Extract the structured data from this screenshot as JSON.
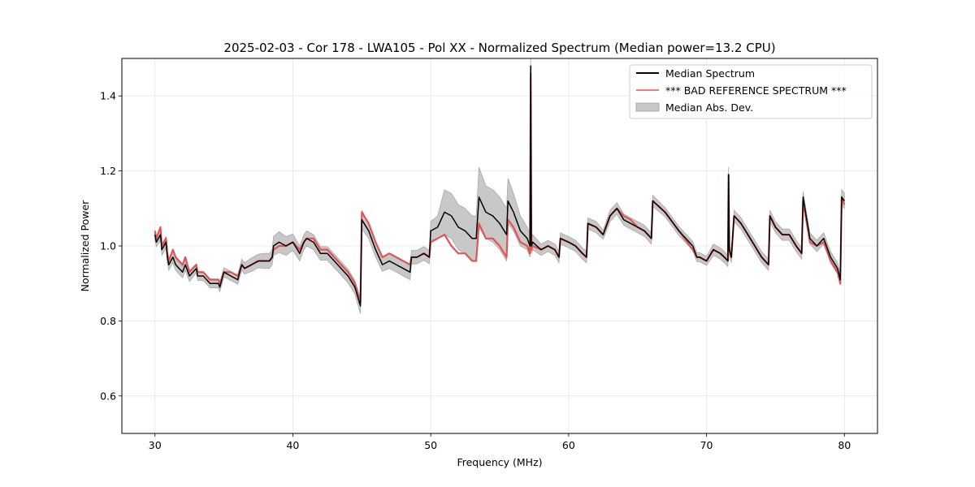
{
  "chart_data": {
    "type": "line",
    "title": "2025-02-03 - Cor 178 - LWA105 - Pol XX - Normalized Spectrum (Median power=13.2 CPU)",
    "xlabel": "Frequency (MHz)",
    "ylabel": "Normalized Power",
    "xlim": [
      27.6,
      82.4
    ],
    "ylim": [
      0.5,
      1.5
    ],
    "xticks": [
      30,
      40,
      50,
      60,
      70,
      80
    ],
    "yticks": [
      0.6,
      0.8,
      1.0,
      1.2,
      1.4
    ],
    "xtick_labels": [
      "30",
      "40",
      "50",
      "60",
      "70",
      "80"
    ],
    "ytick_labels": [
      "0.6",
      "0.8",
      "1.0",
      "1.2",
      "1.4"
    ],
    "grid": true,
    "legend_position": "top-right",
    "series": [
      {
        "name": "Median Spectrum",
        "color": "#000000",
        "x": [
          30.0,
          30.1,
          30.4,
          30.5,
          30.8,
          30.9,
          31.0,
          31.3,
          31.5,
          32.0,
          32.2,
          32.5,
          33.0,
          33.1,
          33.5,
          34.0,
          34.6,
          34.7,
          35.0,
          35.5,
          36.0,
          36.3,
          36.5,
          37.0,
          37.5,
          38.0,
          38.3,
          38.5,
          38.6,
          39.0,
          39.5,
          40.0,
          40.5,
          40.8,
          41.0,
          41.5,
          42.0,
          42.5,
          43.0,
          43.5,
          44.0,
          44.5,
          44.9,
          45.0,
          45.5,
          46.0,
          46.5,
          47.0,
          47.5,
          48.0,
          48.5,
          48.6,
          49.0,
          49.5,
          49.9,
          50.0,
          50.5,
          51.0,
          51.5,
          52.0,
          52.5,
          53.0,
          53.3,
          53.5,
          54.0,
          54.5,
          55.0,
          55.5,
          55.6,
          56.0,
          56.5,
          57.0,
          57.2,
          57.25,
          57.3,
          57.4,
          58.0,
          58.5,
          59.0,
          59.3,
          59.4,
          60.0,
          60.5,
          61.0,
          61.3,
          61.4,
          62.0,
          62.5,
          63.0,
          63.5,
          64.0,
          64.5,
          65.0,
          65.5,
          66.0,
          66.1,
          67.0,
          68.0,
          69.0,
          69.3,
          69.5,
          70.0,
          70.5,
          71.0,
          71.3,
          71.55,
          71.6,
          71.65,
          71.8,
          72.0,
          72.5,
          73.0,
          73.5,
          74.0,
          74.5,
          74.6,
          75.0,
          75.5,
          76.0,
          76.5,
          76.9,
          77.0,
          77.5,
          78.0,
          78.5,
          79.0,
          79.5,
          79.7,
          79.8,
          80.0
        ],
        "y": [
          1.03,
          1.01,
          1.03,
          0.99,
          1.01,
          0.97,
          0.95,
          0.97,
          0.95,
          0.93,
          0.95,
          0.92,
          0.94,
          0.92,
          0.92,
          0.9,
          0.9,
          0.89,
          0.93,
          0.92,
          0.91,
          0.95,
          0.94,
          0.95,
          0.96,
          0.96,
          0.96,
          0.97,
          1.0,
          1.01,
          1.0,
          1.01,
          0.98,
          1.01,
          1.02,
          1.01,
          0.98,
          0.98,
          0.96,
          0.94,
          0.92,
          0.89,
          0.84,
          1.07,
          1.04,
          0.99,
          0.95,
          0.96,
          0.95,
          0.94,
          0.93,
          0.97,
          0.97,
          0.98,
          0.97,
          1.04,
          1.05,
          1.09,
          1.08,
          1.05,
          1.04,
          1.02,
          1.02,
          1.13,
          1.09,
          1.08,
          1.06,
          1.03,
          1.12,
          1.09,
          1.04,
          1.02,
          1.0,
          1.48,
          1.0,
          1.01,
          0.99,
          1.0,
          0.99,
          0.97,
          1.02,
          1.01,
          1.0,
          0.98,
          0.97,
          1.06,
          1.05,
          1.03,
          1.08,
          1.1,
          1.07,
          1.06,
          1.05,
          1.04,
          1.02,
          1.12,
          1.09,
          1.04,
          1.0,
          0.97,
          0.97,
          0.96,
          0.99,
          0.98,
          0.97,
          0.96,
          1.19,
          0.99,
          0.97,
          1.08,
          1.06,
          1.03,
          1.0,
          0.97,
          0.95,
          1.08,
          1.05,
          1.03,
          1.03,
          1.0,
          0.98,
          1.13,
          1.02,
          1.0,
          1.02,
          0.97,
          0.94,
          0.91,
          1.13,
          1.12
        ]
      },
      {
        "name": "*** BAD REFERENCE SPECTRUM ***",
        "color": "#e05555",
        "x": [
          30.0,
          30.1,
          30.4,
          30.5,
          30.8,
          30.9,
          31.0,
          31.3,
          31.5,
          32.0,
          32.2,
          32.5,
          33.0,
          33.1,
          33.5,
          34.0,
          34.6,
          34.7,
          35.0,
          35.5,
          36.0,
          36.3,
          36.5,
          37.0,
          37.5,
          38.0,
          38.3,
          38.5,
          38.6,
          39.0,
          39.5,
          40.0,
          40.5,
          40.8,
          41.0,
          41.5,
          42.0,
          42.5,
          43.0,
          43.5,
          44.0,
          44.5,
          44.9,
          45.0,
          45.5,
          46.0,
          46.5,
          47.0,
          47.5,
          48.0,
          48.5,
          48.6,
          49.0,
          49.5,
          49.9,
          50.0,
          50.5,
          51.0,
          51.5,
          52.0,
          52.5,
          53.0,
          53.3,
          53.5,
          54.0,
          54.5,
          55.0,
          55.5,
          55.6,
          56.0,
          56.5,
          57.0,
          57.2,
          57.25,
          57.3,
          57.4,
          58.0,
          58.5,
          59.0,
          59.3,
          59.4,
          60.0,
          60.5,
          61.0,
          61.3,
          61.4,
          62.0,
          62.5,
          63.0,
          63.5,
          64.0,
          64.5,
          65.0,
          65.5,
          66.0,
          66.1,
          67.0,
          68.0,
          69.0,
          69.3,
          69.5,
          70.0,
          70.5,
          71.0,
          71.3,
          71.55,
          71.6,
          71.65,
          71.8,
          72.0,
          72.5,
          73.0,
          73.5,
          74.0,
          74.5,
          74.6,
          75.0,
          75.5,
          76.0,
          76.5,
          76.9,
          77.0,
          77.5,
          78.0,
          78.5,
          79.0,
          79.5,
          79.7,
          79.8,
          80.0
        ],
        "y": [
          1.04,
          1.02,
          1.05,
          1.0,
          1.02,
          0.98,
          0.96,
          0.99,
          0.97,
          0.95,
          0.97,
          0.93,
          0.95,
          0.93,
          0.93,
          0.91,
          0.91,
          0.9,
          0.93,
          0.93,
          0.92,
          0.95,
          0.94,
          0.95,
          0.96,
          0.96,
          0.96,
          0.97,
          0.99,
          1.0,
          1.0,
          1.01,
          0.99,
          1.01,
          1.02,
          1.02,
          0.99,
          0.99,
          0.97,
          0.95,
          0.93,
          0.9,
          0.85,
          1.09,
          1.06,
          1.01,
          0.97,
          0.98,
          0.97,
          0.96,
          0.95,
          0.97,
          0.97,
          0.98,
          0.97,
          1.01,
          1.02,
          1.03,
          1.0,
          0.98,
          0.98,
          0.96,
          0.96,
          1.06,
          1.02,
          1.02,
          1.0,
          0.97,
          1.07,
          1.05,
          1.01,
          1.0,
          0.98,
          1.46,
          0.99,
          1.0,
          0.99,
          1.0,
          0.99,
          0.97,
          1.02,
          1.01,
          1.0,
          0.98,
          0.97,
          1.06,
          1.05,
          1.03,
          1.08,
          1.1,
          1.08,
          1.07,
          1.05,
          1.04,
          1.02,
          1.12,
          1.09,
          1.04,
          0.99,
          0.97,
          0.97,
          0.96,
          0.99,
          0.98,
          0.97,
          0.96,
          1.19,
          0.99,
          0.97,
          1.08,
          1.06,
          1.03,
          1.0,
          0.97,
          0.95,
          1.08,
          1.05,
          1.03,
          1.03,
          1.0,
          0.98,
          1.12,
          1.01,
          1.0,
          1.01,
          0.96,
          0.93,
          0.9,
          1.13,
          1.11
        ]
      },
      {
        "name": "Median Abs. Dev.",
        "color": "#c8c8c8",
        "type": "band",
        "x": [
          30.0,
          30.1,
          30.4,
          30.5,
          30.8,
          30.9,
          31.0,
          31.3,
          31.5,
          32.0,
          32.2,
          32.5,
          33.0,
          33.1,
          33.5,
          34.0,
          34.6,
          34.7,
          35.0,
          35.5,
          36.0,
          36.3,
          36.5,
          37.0,
          37.5,
          38.0,
          38.3,
          38.5,
          38.6,
          39.0,
          39.5,
          40.0,
          40.5,
          40.8,
          41.0,
          41.5,
          42.0,
          42.5,
          43.0,
          43.5,
          44.0,
          44.5,
          44.9,
          45.0,
          45.5,
          46.0,
          46.5,
          47.0,
          47.5,
          48.0,
          48.5,
          48.6,
          49.0,
          49.5,
          49.9,
          50.0,
          50.5,
          51.0,
          51.5,
          52.0,
          52.5,
          53.0,
          53.3,
          53.5,
          54.0,
          54.5,
          55.0,
          55.5,
          55.6,
          56.0,
          56.5,
          57.0,
          57.2,
          57.25,
          57.3,
          57.4,
          58.0,
          58.5,
          59.0,
          59.3,
          59.4,
          60.0,
          60.5,
          61.0,
          61.3,
          61.4,
          62.0,
          62.5,
          63.0,
          63.5,
          64.0,
          64.5,
          65.0,
          65.5,
          66.0,
          66.1,
          67.0,
          68.0,
          69.0,
          69.3,
          69.5,
          70.0,
          70.5,
          71.0,
          71.3,
          71.55,
          71.6,
          71.65,
          71.8,
          72.0,
          72.5,
          73.0,
          73.5,
          74.0,
          74.5,
          74.6,
          75.0,
          75.5,
          76.0,
          76.5,
          76.9,
          77.0,
          77.5,
          78.0,
          78.5,
          79.0,
          79.5,
          79.7,
          79.8,
          80.0
        ],
        "dev": [
          0.012,
          0.012,
          0.015,
          0.015,
          0.015,
          0.015,
          0.015,
          0.015,
          0.015,
          0.015,
          0.015,
          0.015,
          0.012,
          0.012,
          0.012,
          0.012,
          0.012,
          0.012,
          0.012,
          0.012,
          0.012,
          0.015,
          0.015,
          0.018,
          0.018,
          0.02,
          0.02,
          0.02,
          0.025,
          0.028,
          0.025,
          0.022,
          0.02,
          0.02,
          0.02,
          0.02,
          0.018,
          0.018,
          0.018,
          0.018,
          0.018,
          0.018,
          0.02,
          0.025,
          0.02,
          0.02,
          0.018,
          0.02,
          0.02,
          0.02,
          0.02,
          0.018,
          0.018,
          0.018,
          0.018,
          0.025,
          0.03,
          0.06,
          0.06,
          0.06,
          0.06,
          0.06,
          0.06,
          0.08,
          0.07,
          0.07,
          0.07,
          0.07,
          0.06,
          0.05,
          0.04,
          0.03,
          0.03,
          0.03,
          0.02,
          0.02,
          0.015,
          0.015,
          0.015,
          0.015,
          0.015,
          0.015,
          0.015,
          0.015,
          0.015,
          0.015,
          0.015,
          0.012,
          0.015,
          0.015,
          0.015,
          0.015,
          0.015,
          0.015,
          0.015,
          0.015,
          0.012,
          0.012,
          0.012,
          0.012,
          0.012,
          0.012,
          0.015,
          0.015,
          0.015,
          0.015,
          0.02,
          0.015,
          0.015,
          0.015,
          0.015,
          0.015,
          0.015,
          0.015,
          0.015,
          0.015,
          0.015,
          0.015,
          0.015,
          0.015,
          0.015,
          0.015,
          0.015,
          0.015,
          0.015,
          0.015,
          0.015,
          0.015,
          0.02,
          0.02
        ]
      }
    ]
  }
}
